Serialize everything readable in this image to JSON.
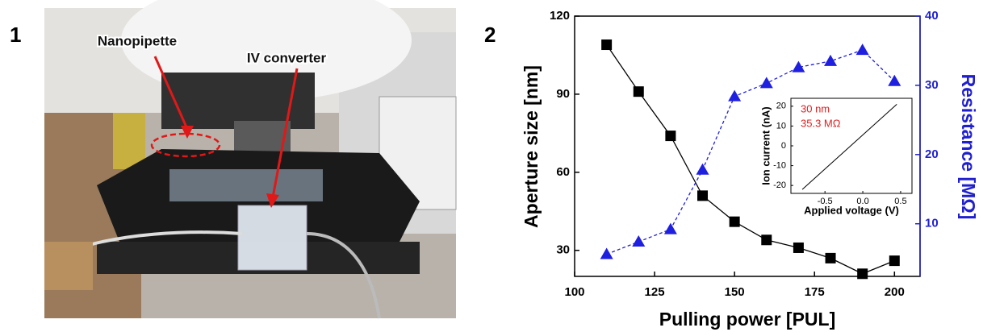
{
  "panel_labels": [
    "1",
    "2"
  ],
  "photo": {
    "annotations": [
      "Nanopipette",
      "IV converter"
    ]
  },
  "chart_data": [
    {
      "type": "line",
      "x_label": "Pulling power [PUL]",
      "y_label": "Aperture size [nm]",
      "y2_label": "Resistance [MΩ]",
      "x": [
        110,
        120,
        130,
        140,
        150,
        160,
        170,
        180,
        190,
        200
      ],
      "xlim": [
        100,
        208
      ],
      "xticks": [
        100,
        125,
        150,
        175,
        200
      ],
      "ylim": [
        20,
        120
      ],
      "yticks": [
        30,
        60,
        90,
        120
      ],
      "y2lim": [
        2.4,
        40
      ],
      "y2ticks": [
        10,
        20,
        30,
        40
      ],
      "y2_color": "#1f1fd0",
      "series": [
        {
          "color": "#000000",
          "marker": "square",
          "dash": false,
          "values": [
            109,
            91,
            74,
            51,
            41,
            34,
            31,
            27,
            21,
            26
          ]
        },
        {
          "axis": "y2",
          "color": "#1f1fe0",
          "marker": "triangle",
          "dash": true,
          "values": [
            5.6,
            7.4,
            9.2,
            17.8,
            28.4,
            30.3,
            32.6,
            33.5,
            35.1,
            30.6
          ]
        }
      ]
    },
    {
      "type": "line",
      "x_label": "Applied voltage (V)",
      "y_label": "Ion current (nA)",
      "annotations": [
        "30 nm",
        "35.3 MΩ"
      ],
      "annotation_color": "#e02020",
      "x": [
        -0.8,
        0.45
      ],
      "xlim": [
        -0.95,
        0.65
      ],
      "xticks": [
        -0.5,
        {
          "value": 0,
          "label": "0.0"
        },
        0.5
      ],
      "ylim": [
        -24,
        24
      ],
      "yticks": [
        -20,
        -10,
        0,
        10,
        20
      ],
      "series": [
        {
          "color": "#000000",
          "marker": "none",
          "dash": false,
          "values": [
            -22,
            21
          ]
        }
      ]
    }
  ]
}
